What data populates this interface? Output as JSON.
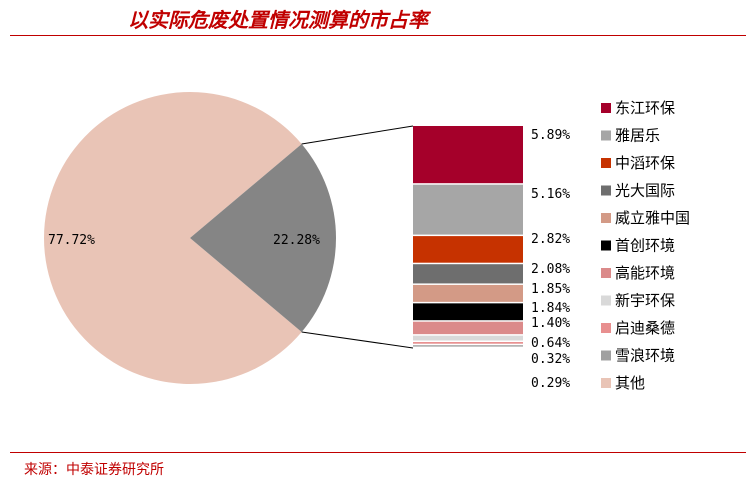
{
  "title": "以实际危废处置情况测算的市占率",
  "source": "来源：中泰证券研究所",
  "chart_data": {
    "type": "pie",
    "title": "以实际危废处置情况测算的市占率",
    "pie": [
      {
        "label": "77.72%",
        "value": 77.72,
        "color": "#e9c4b6"
      },
      {
        "label": "22.28%",
        "value": 22.28,
        "color": "#858585"
      }
    ],
    "breakdown": {
      "type": "stacked-bar",
      "total": 22.28,
      "segments": [
        {
          "name": "东江环保",
          "value": 5.89,
          "label": "5.89%",
          "color": "#a5002a"
        },
        {
          "name": "雅居乐",
          "value": 5.16,
          "label": "5.16%",
          "color": "#a6a6a6"
        },
        {
          "name": "中滔环保",
          "value": 2.82,
          "label": "2.82%",
          "color": "#c63200"
        },
        {
          "name": "光大国际",
          "value": 2.08,
          "label": "2.08%",
          "color": "#6e6e6e"
        },
        {
          "name": "威立雅中国",
          "value": 1.85,
          "label": "1.85%",
          "color": "#d39a86"
        },
        {
          "name": "首创环境",
          "value": 1.84,
          "label": "1.84%",
          "color": "#000000"
        },
        {
          "name": "高能环境",
          "value": 1.4,
          "label": "1.40%",
          "color": "#db8a8a"
        },
        {
          "name": "新宇环保",
          "value": 0.64,
          "label": "0.64%",
          "color": "#d9d9d9"
        },
        {
          "name": "启迪桑德",
          "value": 0.32,
          "label": "0.32%",
          "color": "#e88f8f"
        },
        {
          "name": "雪浪环境",
          "value": 0.29,
          "label": "0.29%",
          "color": "#a0a0a0"
        }
      ]
    },
    "legend": [
      {
        "name": "东江环保",
        "color": "#a5002a"
      },
      {
        "name": "雅居乐",
        "color": "#a6a6a6"
      },
      {
        "name": "中滔环保",
        "color": "#c63200"
      },
      {
        "name": "光大国际",
        "color": "#6e6e6e"
      },
      {
        "name": "威立雅中国",
        "color": "#d39a86"
      },
      {
        "name": "首创环境",
        "color": "#000000"
      },
      {
        "name": "高能环境",
        "color": "#db8a8a"
      },
      {
        "name": "新宇环保",
        "color": "#d9d9d9"
      },
      {
        "name": "启迪桑德",
        "color": "#e88f8f"
      },
      {
        "name": "雪浪环境",
        "color": "#a0a0a0"
      },
      {
        "name": "其他",
        "color": "#e9c4b6"
      }
    ],
    "legend_placement": "right"
  }
}
